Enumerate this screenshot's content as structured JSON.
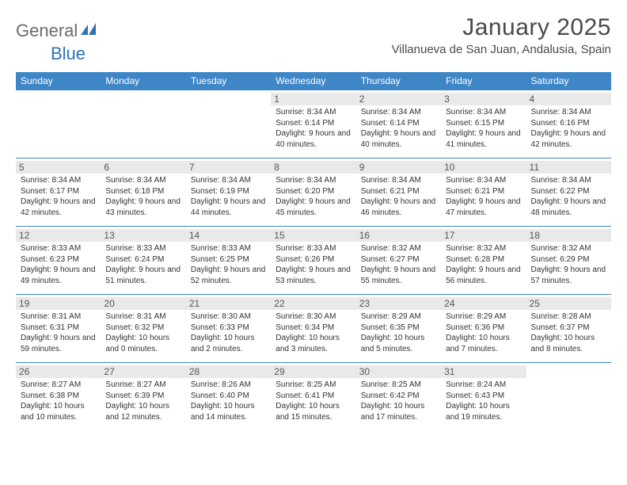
{
  "brand": {
    "general": "General",
    "blue": "Blue"
  },
  "title": "January 2025",
  "location": "Villanueva de San Juan, Andalusia, Spain",
  "colors": {
    "header_bg": "#3f86c7",
    "header_text": "#ffffff",
    "daynum_bg": "#e9e9e9",
    "border": "#3f86c7",
    "logo_gray": "#6b6b6b",
    "logo_blue": "#2e72b8"
  },
  "day_headers": [
    "Sunday",
    "Monday",
    "Tuesday",
    "Wednesday",
    "Thursday",
    "Friday",
    "Saturday"
  ],
  "weeks": [
    [
      {
        "n": "",
        "sr": "",
        "ss": "",
        "dl": "",
        "empty": true
      },
      {
        "n": "",
        "sr": "",
        "ss": "",
        "dl": "",
        "empty": true
      },
      {
        "n": "",
        "sr": "",
        "ss": "",
        "dl": "",
        "empty": true
      },
      {
        "n": "1",
        "sr": "8:34 AM",
        "ss": "6:14 PM",
        "dl": "9 hours and 40 minutes."
      },
      {
        "n": "2",
        "sr": "8:34 AM",
        "ss": "6:14 PM",
        "dl": "9 hours and 40 minutes."
      },
      {
        "n": "3",
        "sr": "8:34 AM",
        "ss": "6:15 PM",
        "dl": "9 hours and 41 minutes."
      },
      {
        "n": "4",
        "sr": "8:34 AM",
        "ss": "6:16 PM",
        "dl": "9 hours and 42 minutes."
      }
    ],
    [
      {
        "n": "5",
        "sr": "8:34 AM",
        "ss": "6:17 PM",
        "dl": "9 hours and 42 minutes."
      },
      {
        "n": "6",
        "sr": "8:34 AM",
        "ss": "6:18 PM",
        "dl": "9 hours and 43 minutes."
      },
      {
        "n": "7",
        "sr": "8:34 AM",
        "ss": "6:19 PM",
        "dl": "9 hours and 44 minutes."
      },
      {
        "n": "8",
        "sr": "8:34 AM",
        "ss": "6:20 PM",
        "dl": "9 hours and 45 minutes."
      },
      {
        "n": "9",
        "sr": "8:34 AM",
        "ss": "6:21 PM",
        "dl": "9 hours and 46 minutes."
      },
      {
        "n": "10",
        "sr": "8:34 AM",
        "ss": "6:21 PM",
        "dl": "9 hours and 47 minutes."
      },
      {
        "n": "11",
        "sr": "8:34 AM",
        "ss": "6:22 PM",
        "dl": "9 hours and 48 minutes."
      }
    ],
    [
      {
        "n": "12",
        "sr": "8:33 AM",
        "ss": "6:23 PM",
        "dl": "9 hours and 49 minutes."
      },
      {
        "n": "13",
        "sr": "8:33 AM",
        "ss": "6:24 PM",
        "dl": "9 hours and 51 minutes."
      },
      {
        "n": "14",
        "sr": "8:33 AM",
        "ss": "6:25 PM",
        "dl": "9 hours and 52 minutes."
      },
      {
        "n": "15",
        "sr": "8:33 AM",
        "ss": "6:26 PM",
        "dl": "9 hours and 53 minutes."
      },
      {
        "n": "16",
        "sr": "8:32 AM",
        "ss": "6:27 PM",
        "dl": "9 hours and 55 minutes."
      },
      {
        "n": "17",
        "sr": "8:32 AM",
        "ss": "6:28 PM",
        "dl": "9 hours and 56 minutes."
      },
      {
        "n": "18",
        "sr": "8:32 AM",
        "ss": "6:29 PM",
        "dl": "9 hours and 57 minutes."
      }
    ],
    [
      {
        "n": "19",
        "sr": "8:31 AM",
        "ss": "6:31 PM",
        "dl": "9 hours and 59 minutes."
      },
      {
        "n": "20",
        "sr": "8:31 AM",
        "ss": "6:32 PM",
        "dl": "10 hours and 0 minutes."
      },
      {
        "n": "21",
        "sr": "8:30 AM",
        "ss": "6:33 PM",
        "dl": "10 hours and 2 minutes."
      },
      {
        "n": "22",
        "sr": "8:30 AM",
        "ss": "6:34 PM",
        "dl": "10 hours and 3 minutes."
      },
      {
        "n": "23",
        "sr": "8:29 AM",
        "ss": "6:35 PM",
        "dl": "10 hours and 5 minutes."
      },
      {
        "n": "24",
        "sr": "8:29 AM",
        "ss": "6:36 PM",
        "dl": "10 hours and 7 minutes."
      },
      {
        "n": "25",
        "sr": "8:28 AM",
        "ss": "6:37 PM",
        "dl": "10 hours and 8 minutes."
      }
    ],
    [
      {
        "n": "26",
        "sr": "8:27 AM",
        "ss": "6:38 PM",
        "dl": "10 hours and 10 minutes."
      },
      {
        "n": "27",
        "sr": "8:27 AM",
        "ss": "6:39 PM",
        "dl": "10 hours and 12 minutes."
      },
      {
        "n": "28",
        "sr": "8:26 AM",
        "ss": "6:40 PM",
        "dl": "10 hours and 14 minutes."
      },
      {
        "n": "29",
        "sr": "8:25 AM",
        "ss": "6:41 PM",
        "dl": "10 hours and 15 minutes."
      },
      {
        "n": "30",
        "sr": "8:25 AM",
        "ss": "6:42 PM",
        "dl": "10 hours and 17 minutes."
      },
      {
        "n": "31",
        "sr": "8:24 AM",
        "ss": "6:43 PM",
        "dl": "10 hours and 19 minutes."
      },
      {
        "n": "",
        "sr": "",
        "ss": "",
        "dl": "",
        "empty": true
      }
    ]
  ],
  "labels": {
    "sunrise": "Sunrise: ",
    "sunset": "Sunset: ",
    "daylight": "Daylight: "
  }
}
